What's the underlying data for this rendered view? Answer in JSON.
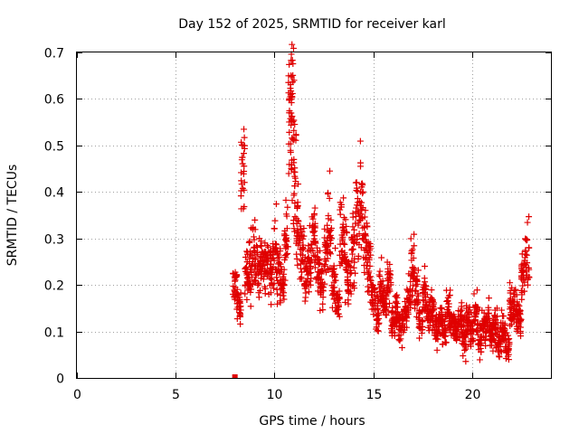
{
  "chart_data": {
    "type": "scatter",
    "title": "Day 152 of 2025, SRMTID for receiver karl",
    "xlabel": "GPS time / hours",
    "ylabel": "SRMTID / TECUs",
    "xlim": [
      0,
      24
    ],
    "ylim": [
      0,
      0.7
    ],
    "xticks": [
      0,
      5,
      10,
      15,
      20
    ],
    "xtick_labels": [
      "0",
      "5",
      "10",
      "15",
      "20"
    ],
    "yticks": [
      0,
      0.1,
      0.2,
      0.3,
      0.4,
      0.5,
      0.6,
      0.7
    ],
    "ytick_labels": [
      "0",
      "0.1",
      "0.2",
      "0.3",
      "0.4",
      "0.5",
      "0.6",
      "0.7"
    ],
    "grid": true,
    "legend": "none",
    "marker": "plus",
    "colors": {
      "series": "#e00000",
      "grid": "#a0a0a0",
      "axis": "#000000"
    },
    "zero_marker": {
      "x": 8.0,
      "y": 0.0
    },
    "series": [
      {
        "name": "SRMTID",
        "cluster_centers": [
          {
            "x": 8.0,
            "y": 0.2
          },
          {
            "x": 8.2,
            "y": 0.16
          },
          {
            "x": 8.4,
            "y": 0.43
          },
          {
            "x": 8.6,
            "y": 0.22
          },
          {
            "x": 8.8,
            "y": 0.24
          },
          {
            "x": 9.0,
            "y": 0.27
          },
          {
            "x": 9.2,
            "y": 0.24
          },
          {
            "x": 9.4,
            "y": 0.26
          },
          {
            "x": 9.6,
            "y": 0.25
          },
          {
            "x": 9.8,
            "y": 0.22
          },
          {
            "x": 10.0,
            "y": 0.27
          },
          {
            "x": 10.2,
            "y": 0.24
          },
          {
            "x": 10.4,
            "y": 0.2
          },
          {
            "x": 10.6,
            "y": 0.3
          },
          {
            "x": 10.8,
            "y": 0.56
          },
          {
            "x": 10.9,
            "y": 0.62
          },
          {
            "x": 11.0,
            "y": 0.45
          },
          {
            "x": 11.2,
            "y": 0.33
          },
          {
            "x": 11.4,
            "y": 0.27
          },
          {
            "x": 11.6,
            "y": 0.22
          },
          {
            "x": 11.8,
            "y": 0.26
          },
          {
            "x": 12.0,
            "y": 0.3
          },
          {
            "x": 12.2,
            "y": 0.23
          },
          {
            "x": 12.4,
            "y": 0.19
          },
          {
            "x": 12.6,
            "y": 0.26
          },
          {
            "x": 12.8,
            "y": 0.33
          },
          {
            "x": 13.0,
            "y": 0.2
          },
          {
            "x": 13.2,
            "y": 0.16
          },
          {
            "x": 13.4,
            "y": 0.3
          },
          {
            "x": 13.6,
            "y": 0.28
          },
          {
            "x": 13.8,
            "y": 0.21
          },
          {
            "x": 14.0,
            "y": 0.27
          },
          {
            "x": 14.2,
            "y": 0.35
          },
          {
            "x": 14.4,
            "y": 0.37
          },
          {
            "x": 14.6,
            "y": 0.29
          },
          {
            "x": 14.8,
            "y": 0.25
          },
          {
            "x": 15.0,
            "y": 0.17
          },
          {
            "x": 15.2,
            "y": 0.14
          },
          {
            "x": 15.4,
            "y": 0.19
          },
          {
            "x": 15.6,
            "y": 0.16
          },
          {
            "x": 15.8,
            "y": 0.2
          },
          {
            "x": 16.0,
            "y": 0.12
          },
          {
            "x": 16.2,
            "y": 0.15
          },
          {
            "x": 16.4,
            "y": 0.11
          },
          {
            "x": 16.6,
            "y": 0.13
          },
          {
            "x": 16.8,
            "y": 0.17
          },
          {
            "x": 17.0,
            "y": 0.24
          },
          {
            "x": 17.2,
            "y": 0.19
          },
          {
            "x": 17.4,
            "y": 0.12
          },
          {
            "x": 17.6,
            "y": 0.18
          },
          {
            "x": 17.8,
            "y": 0.14
          },
          {
            "x": 18.0,
            "y": 0.15
          },
          {
            "x": 18.2,
            "y": 0.11
          },
          {
            "x": 18.4,
            "y": 0.13
          },
          {
            "x": 18.6,
            "y": 0.1
          },
          {
            "x": 18.8,
            "y": 0.15
          },
          {
            "x": 19.0,
            "y": 0.12
          },
          {
            "x": 19.2,
            "y": 0.1
          },
          {
            "x": 19.4,
            "y": 0.13
          },
          {
            "x": 19.6,
            "y": 0.09
          },
          {
            "x": 19.8,
            "y": 0.12
          },
          {
            "x": 20.0,
            "y": 0.1
          },
          {
            "x": 20.2,
            "y": 0.14
          },
          {
            "x": 20.4,
            "y": 0.08
          },
          {
            "x": 20.6,
            "y": 0.11
          },
          {
            "x": 20.8,
            "y": 0.12
          },
          {
            "x": 21.0,
            "y": 0.09
          },
          {
            "x": 21.2,
            "y": 0.11
          },
          {
            "x": 21.4,
            "y": 0.08
          },
          {
            "x": 21.6,
            "y": 0.1
          },
          {
            "x": 21.8,
            "y": 0.07
          },
          {
            "x": 22.0,
            "y": 0.15
          },
          {
            "x": 22.2,
            "y": 0.14
          },
          {
            "x": 22.4,
            "y": 0.13
          },
          {
            "x": 22.6,
            "y": 0.22
          },
          {
            "x": 22.8,
            "y": 0.26
          }
        ]
      }
    ]
  }
}
